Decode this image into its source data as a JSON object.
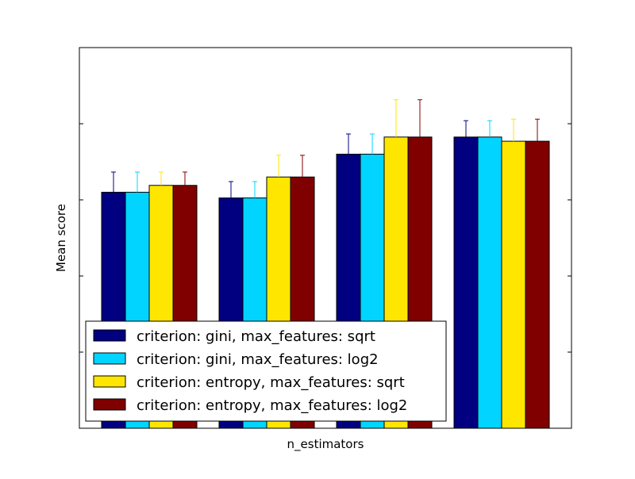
{
  "chart_data": {
    "type": "bar",
    "title": "",
    "xlabel": "n_estimators",
    "ylabel": "Mean score",
    "ylim": [
      0,
      1
    ],
    "categories": [
      "",
      "",
      "",
      ""
    ],
    "grid": false,
    "legend_position": "lower-left",
    "series": [
      {
        "name": "criterion: gini, max_features: sqrt",
        "color": "#000080",
        "values": [
          0.62,
          0.605,
          0.72,
          0.765
        ],
        "errors": [
          0.053,
          0.043,
          0.053,
          0.043
        ]
      },
      {
        "name": "criterion: gini, max_features: log2",
        "color": "#00d4ff",
        "values": [
          0.62,
          0.605,
          0.72,
          0.765
        ],
        "errors": [
          0.053,
          0.043,
          0.053,
          0.043
        ]
      },
      {
        "name": "criterion: entropy, max_features: sqrt",
        "color": "#ffe600",
        "values": [
          0.638,
          0.66,
          0.765,
          0.754
        ],
        "errors": [
          0.035,
          0.057,
          0.098,
          0.058
        ]
      },
      {
        "name": "criterion: entropy, max_features: log2",
        "color": "#800000",
        "values": [
          0.638,
          0.66,
          0.765,
          0.754
        ],
        "errors": [
          0.035,
          0.057,
          0.098,
          0.058
        ]
      }
    ]
  }
}
